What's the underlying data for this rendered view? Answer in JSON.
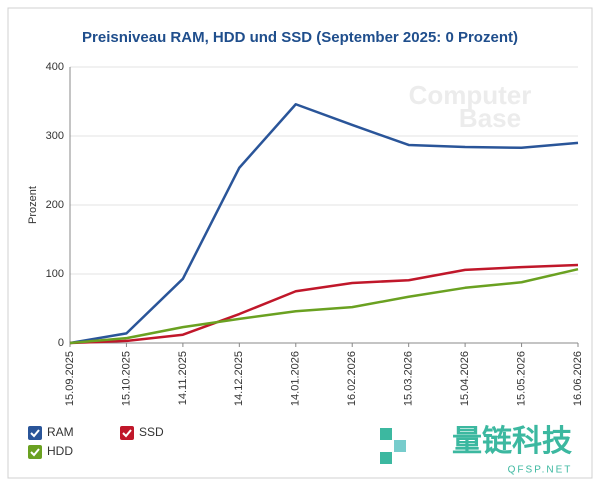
{
  "chart_data": {
    "type": "line",
    "title": "Preisniveau RAM, HDD und SSD (September 2025: 0 Prozent)",
    "y_label": "Prozent",
    "categories": [
      "15.09.2025",
      "15.10.2025",
      "14.11.2025",
      "14.12.2025",
      "14.01.2026",
      "16.02.2026",
      "15.03.2026",
      "15.04.2026",
      "15.05.2026",
      "16.06.2026"
    ],
    "series": [
      {
        "name": "RAM",
        "color": "#2a5599",
        "values": [
          0,
          14,
          93,
          254,
          346,
          316,
          287,
          284,
          283,
          290
        ]
      },
      {
        "name": "SSD",
        "color": "#c0172a",
        "values": [
          0,
          3,
          12,
          42,
          75,
          87,
          91,
          106,
          110,
          113
        ]
      },
      {
        "name": "HDD",
        "color": "#6aa121",
        "values": [
          0,
          7,
          23,
          35,
          46,
          52,
          67,
          80,
          88,
          107
        ]
      }
    ],
    "ylim": [
      0,
      400
    ],
    "yticks": [
      0,
      100,
      200,
      300,
      400
    ],
    "grid": true,
    "legend": "bottom-left"
  },
  "logo": [
    "Computer",
    "Base"
  ],
  "watermark": {
    "text": "量链科技",
    "sub": "QFSP.NET"
  }
}
